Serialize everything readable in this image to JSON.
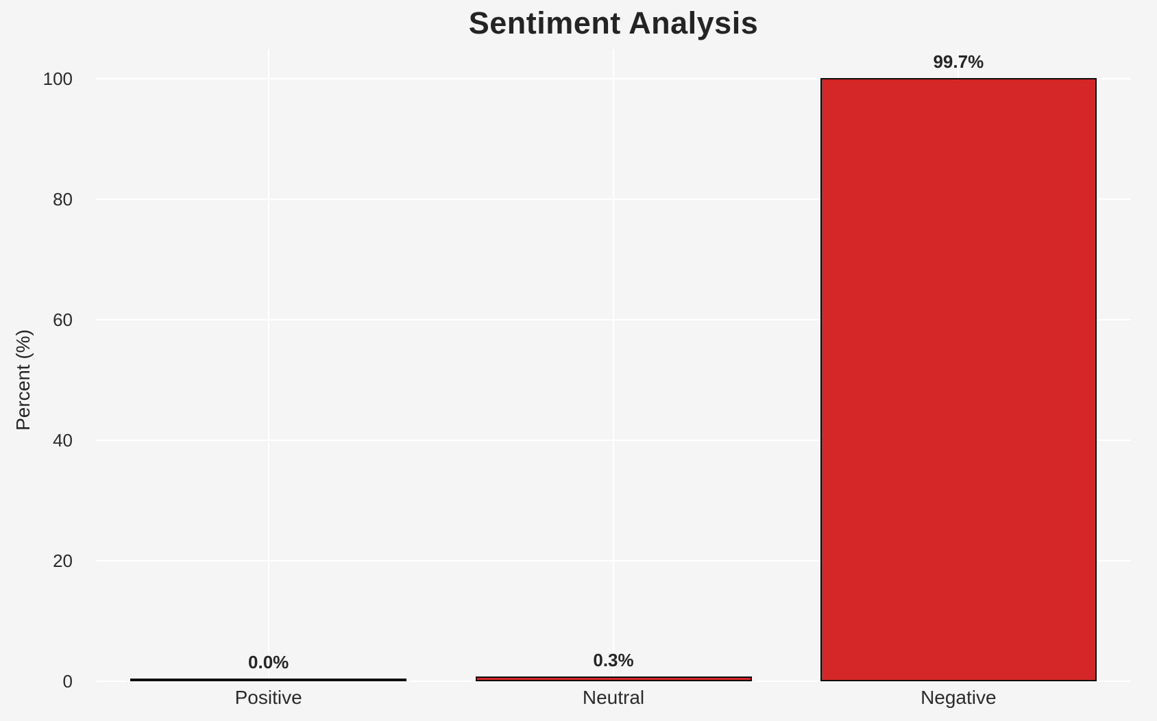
{
  "chart_data": {
    "type": "bar",
    "title": "Sentiment Analysis",
    "ylabel": "Percent (%)",
    "xlabel": "",
    "categories": [
      "Positive",
      "Neutral",
      "Negative"
    ],
    "values": [
      0.0,
      0.3,
      99.7
    ],
    "value_labels": [
      "0.0%",
      "0.3%",
      "99.7%"
    ],
    "yticks": [
      0,
      20,
      40,
      60,
      80,
      100
    ],
    "ylim": [
      0,
      100
    ],
    "grid": "white gridlines, horizontal at yticks and vertical at category centers",
    "legend": "none",
    "colors": {
      "bar_fill": "#d62728",
      "bar_edge": "#0d0d0d",
      "background": "#f5f5f6",
      "gridline": "#ffffff",
      "text": "#262626"
    }
  }
}
